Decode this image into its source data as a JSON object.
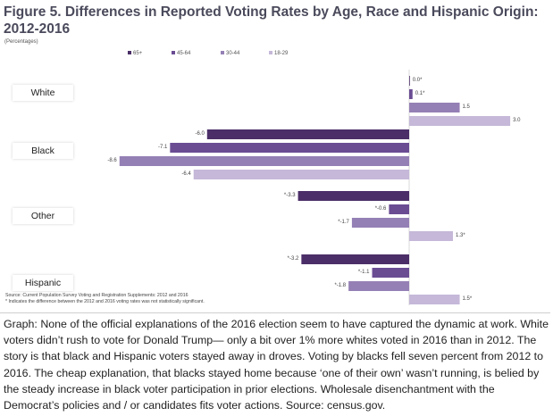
{
  "figure": {
    "title": "Figure 5. Differences in Reported Voting Rates by Age, Race and Hispanic Origin: 2012-2016",
    "unit": "(Percentages)",
    "source": "Source: Current Population Survey Voting and Registration Supplements: 2012 and 2016",
    "footnote": "* Indicates the difference between the 2012 and 2016 voting rates was not statistically significant."
  },
  "caption": "Graph: None of the official explanations of the 2016 election seem to have captured the dynamic at work. White voters didn’t rush to vote for Donald Trump— only a bit over 1% more whites voted in 2016 than in 2012. The story is that black and Hispanic voters stayed away in droves. Voting by blacks fell seven percent from 2012 to 2016. The cheap explanation, that blacks stayed home because ‘one of their own’ wasn’t running, is belied by the steady increase in black voter participation in prior elections. Wholesale disenchantment with the Democrat’s policies and / or candidates fits voter actions. Source: census.gov.",
  "chart_data": {
    "type": "bar",
    "orientation": "horizontal",
    "title": "Figure 5. Differences in Reported Voting Rates by Age, Race and Hispanic Origin: 2012-2016",
    "categories": [
      "White",
      "Black",
      "Other",
      "Hispanic"
    ],
    "series": [
      {
        "name": "65+",
        "color": "#4b2e68",
        "values": [
          0.0,
          -6.0,
          -3.3,
          -3.2
        ],
        "labels": [
          "0.0*",
          "-6.0",
          "*-3.3",
          "*-3.2"
        ]
      },
      {
        "name": "45-64",
        "color": "#6a4c93",
        "values": [
          0.1,
          -7.1,
          -0.6,
          -1.1
        ],
        "labels": [
          "0.1*",
          "-7.1",
          "*-0.6",
          "*-1.1"
        ]
      },
      {
        "name": "30-44",
        "color": "#9580b5",
        "values": [
          1.5,
          -8.6,
          -1.7,
          -1.8
        ],
        "labels": [
          "1.5",
          "-8.6",
          "*-1.7",
          "*-1.8"
        ]
      },
      {
        "name": "18-29",
        "color": "#c5b8d8",
        "values": [
          3.0,
          -6.4,
          1.3,
          1.5
        ],
        "labels": [
          "3.0",
          "-6.4",
          "1.3*",
          "1.5*"
        ]
      }
    ],
    "xlim": [
      -10,
      3.6
    ],
    "legend_position": "top",
    "grid": false
  }
}
